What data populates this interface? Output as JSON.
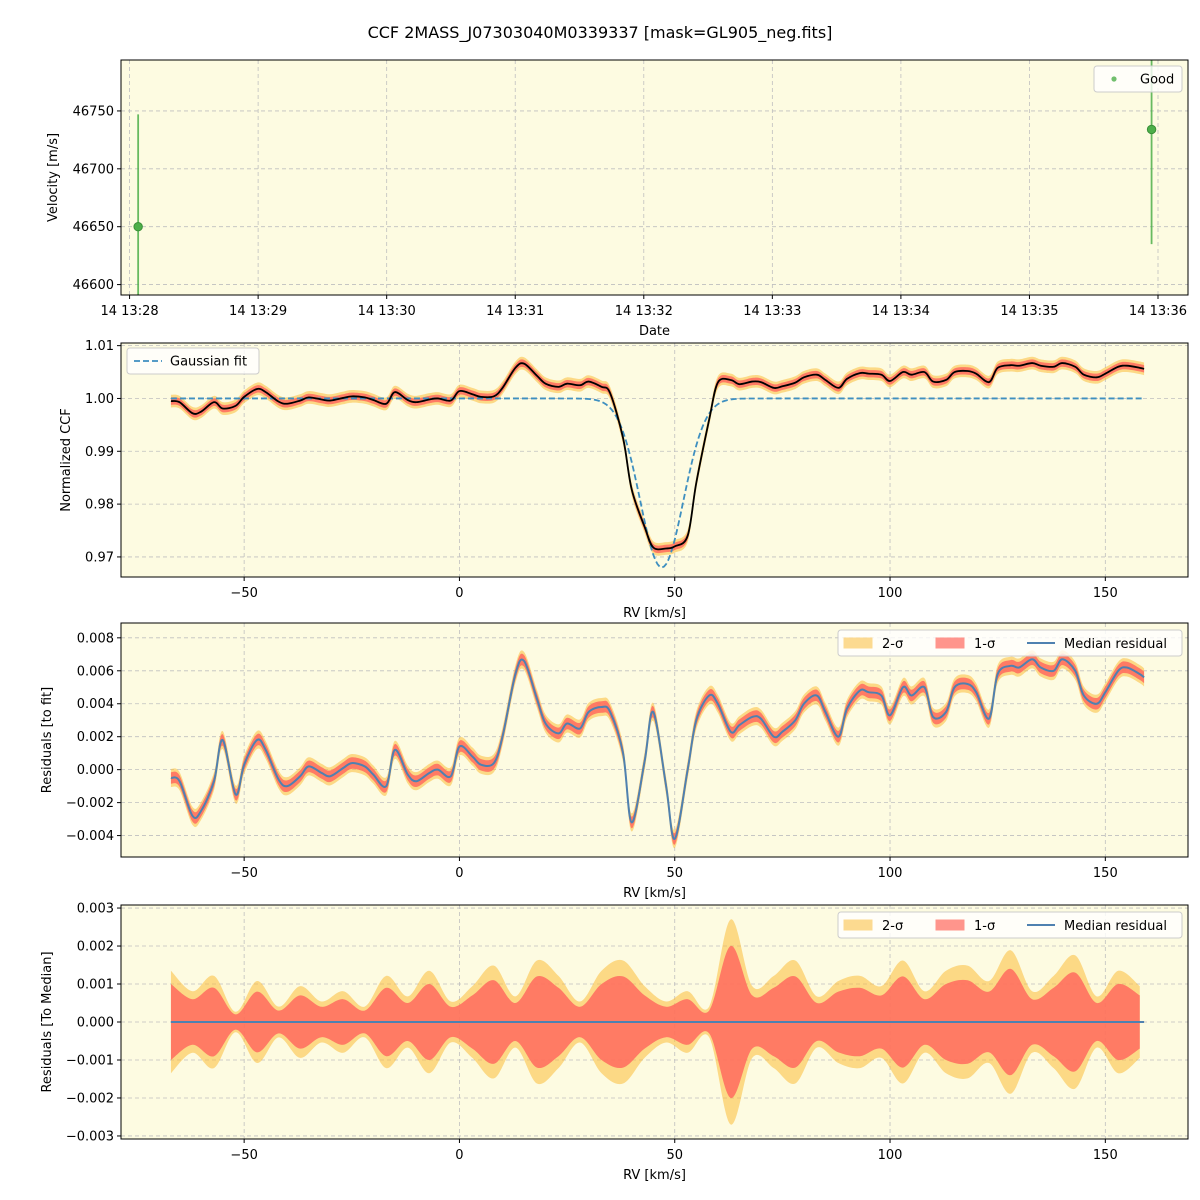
{
  "figure": {
    "suptitle": "CCF 2MASS_J07303040M0339337 [mask=GL905_neg.fits]",
    "facecolor": "#fdfbe1",
    "colors": {
      "good": "#4daf4a",
      "gauss": "#3e8fc0",
      "median": "#4f81b0",
      "ccf": "#000000",
      "band1": "#ff6a5e",
      "band2": "#fbbd3b",
      "grid": "#bfbfbf"
    }
  },
  "chart_data": [
    {
      "type": "scatter",
      "id": "timeseries",
      "title": "",
      "xlabel": "Date",
      "ylabel": "Velocity [m/s]",
      "xlim": [
        "14 13:27:56",
        "14 13:36:14"
      ],
      "ylim": [
        46591,
        46794
      ],
      "x_ticks": [
        "14 13:28",
        "14 13:29",
        "14 13:30",
        "14 13:31",
        "14 13:32",
        "14 13:33",
        "14 13:34",
        "14 13:35",
        "14 13:36"
      ],
      "y_ticks": [
        46600,
        46650,
        46700,
        46750
      ],
      "grid": true,
      "legend": {
        "position": "top-right",
        "entries": [
          "Good"
        ]
      },
      "series": [
        {
          "name": "Good",
          "points": [
            {
              "x": "14 13:28:04",
              "y": 46650,
              "yerr": 97
            },
            {
              "x": "14 13:35:57",
              "y": 46734,
              "yerr": 99
            }
          ]
        }
      ]
    },
    {
      "type": "line",
      "id": "ccf",
      "title": "",
      "xlabel": "RV [km/s]",
      "ylabel": "Normalized CCF",
      "xlim": [
        -78.6,
        169.2
      ],
      "ylim": [
        0.9662,
        1.0105
      ],
      "x_ticks": [
        -50,
        0,
        50,
        100,
        150
      ],
      "y_ticks": [
        0.97,
        0.98,
        0.99,
        1.0,
        1.01
      ],
      "grid": true,
      "legend": {
        "position": "top-left",
        "entries": [
          "Gaussian fit"
        ]
      },
      "gaussian_fit": {
        "center": 47,
        "depth": 0.032,
        "sigma": 5.0,
        "continuum": 1.0,
        "x_range": [
          -67,
          159
        ]
      },
      "series_points": {
        "x": [
          -67,
          -65,
          -62,
          -60,
          -57,
          -55,
          -52,
          -50,
          -47,
          -45,
          -42,
          -40,
          -37,
          -35,
          -32,
          -30,
          -27,
          -25,
          -22,
          -20,
          -17,
          -15,
          -12,
          -10,
          -7,
          -5,
          -2,
          0,
          3,
          5,
          8,
          10,
          13,
          15,
          18,
          20,
          23,
          25,
          28,
          30,
          33,
          35,
          38,
          40,
          43,
          45,
          48,
          50,
          53,
          55,
          58,
          60,
          63,
          65,
          68,
          70,
          73,
          75,
          78,
          80,
          83,
          85,
          88,
          90,
          93,
          95,
          98,
          100,
          103,
          105,
          108,
          110,
          113,
          115,
          118,
          120,
          123,
          125,
          128,
          130,
          133,
          135,
          138,
          140,
          143,
          145,
          148,
          150,
          153,
          155,
          158,
          159
        ],
        "y": [
          0.9995,
          0.9993,
          0.9972,
          0.9975,
          0.9993,
          0.9981,
          0.9986,
          1.0003,
          1.0018,
          1.0012,
          0.9994,
          0.999,
          0.9996,
          1.0002,
          0.9998,
          0.9996,
          1.0001,
          1.0004,
          1.0002,
          0.9997,
          0.999,
          1.0012,
          0.9997,
          0.9993,
          0.9998,
          1.0,
          0.9996,
          1.0014,
          1.0008,
          1.0003,
          1.0004,
          1.002,
          1.0058,
          1.0066,
          1.0043,
          1.0028,
          1.0022,
          1.0028,
          1.0025,
          1.0032,
          1.0022,
          1.001,
          0.9925,
          0.9828,
          0.9757,
          0.9718,
          0.9716,
          0.972,
          0.974,
          0.984,
          0.996,
          1.003,
          1.0035,
          1.0027,
          1.0032,
          1.0031,
          1.002,
          1.0023,
          1.003,
          1.004,
          1.0045,
          1.0035,
          1.002,
          1.0037,
          1.0048,
          1.0047,
          1.0045,
          1.0033,
          1.005,
          1.0045,
          1.005,
          1.0032,
          1.0035,
          1.005,
          1.0052,
          1.0047,
          1.0031,
          1.0058,
          1.0063,
          1.0062,
          1.0067,
          1.0062,
          1.006,
          1.0067,
          1.006,
          1.0045,
          1.004,
          1.0047,
          1.006,
          1.0062,
          1.0058,
          1.0056
        ]
      }
    },
    {
      "type": "area",
      "id": "residuals_fit",
      "title": "",
      "xlabel": "RV [km/s]",
      "ylabel": "Residuals [to fit]",
      "xlim": [
        -78.6,
        169.2
      ],
      "ylim": [
        -0.0053,
        0.0089
      ],
      "x_ticks": [
        -50,
        0,
        50,
        100,
        150
      ],
      "y_ticks": [
        -0.004,
        -0.002,
        0.0,
        0.002,
        0.004,
        0.006,
        0.008
      ],
      "y_tick_labels": [
        "−0.004",
        "−0.002",
        "0.000",
        "0.002",
        "0.004",
        "0.006",
        "0.008"
      ],
      "grid": true,
      "legend": {
        "position": "top-right",
        "entries": [
          "2-σ",
          "1-σ",
          "Median residual"
        ]
      },
      "series": [
        {
          "name": "Median residual",
          "x": [
            -67,
            -65,
            -62,
            -60,
            -57,
            -55,
            -52,
            -50,
            -47,
            -45,
            -42,
            -40,
            -37,
            -35,
            -32,
            -30,
            -27,
            -25,
            -22,
            -20,
            -17,
            -15,
            -12,
            -10,
            -7,
            -5,
            -2,
            0,
            3,
            5,
            8,
            10,
            13,
            15,
            18,
            20,
            23,
            25,
            28,
            30,
            33,
            35,
            38,
            40,
            43,
            45,
            48,
            50,
            53,
            55,
            58,
            60,
            63,
            65,
            68,
            70,
            73,
            75,
            78,
            80,
            83,
            85,
            88,
            90,
            93,
            95,
            98,
            100,
            103,
            105,
            108,
            110,
            113,
            115,
            118,
            120,
            123,
            125,
            128,
            130,
            133,
            135,
            138,
            140,
            143,
            145,
            148,
            150,
            153,
            155,
            158,
            159
          ],
          "y": [
            -0.0005,
            -0.0007,
            -0.0028,
            -0.0025,
            -0.0007,
            0.0018,
            -0.0015,
            0.0003,
            0.0018,
            0.0012,
            -0.0006,
            -0.001,
            -0.0004,
            0.0002,
            -0.0002,
            -0.0004,
            0.0001,
            0.0004,
            0.0002,
            -0.0003,
            -0.001,
            0.0012,
            -0.0003,
            -0.0007,
            -0.0002,
            0.0,
            -0.0004,
            0.0014,
            0.0008,
            0.0003,
            0.0004,
            0.002,
            0.0058,
            0.0066,
            0.0043,
            0.0028,
            0.0022,
            0.0028,
            0.0025,
            0.0035,
            0.0038,
            0.0035,
            0.001,
            -0.0032,
            0.0005,
            0.0035,
            -0.001,
            -0.0042,
            0.0,
            0.003,
            0.0045,
            0.004,
            0.0023,
            0.0027,
            0.0032,
            0.0031,
            0.002,
            0.0023,
            0.003,
            0.004,
            0.0045,
            0.0035,
            0.002,
            0.0037,
            0.0048,
            0.0047,
            0.0045,
            0.0033,
            0.005,
            0.0045,
            0.005,
            0.0032,
            0.0035,
            0.005,
            0.0052,
            0.0047,
            0.0031,
            0.0058,
            0.0063,
            0.0062,
            0.0067,
            0.0062,
            0.006,
            0.0067,
            0.006,
            0.0045,
            0.004,
            0.0047,
            0.006,
            0.0062,
            0.0058,
            0.0056
          ]
        }
      ]
    },
    {
      "type": "area",
      "id": "residuals_median",
      "title": "",
      "xlabel": "RV [km/s]",
      "ylabel": "Residuals [To Median]",
      "xlim": [
        -78.6,
        169.2
      ],
      "ylim": [
        -0.00308,
        0.00308
      ],
      "x_ticks": [
        -50,
        0,
        50,
        100,
        150
      ],
      "y_ticks": [
        -0.003,
        -0.002,
        -0.001,
        0.0,
        0.001,
        0.002,
        0.003
      ],
      "y_tick_labels": [
        "−0.003",
        "−0.002",
        "−0.001",
        "0.000",
        "0.001",
        "0.002",
        "0.003"
      ],
      "grid": true,
      "legend": {
        "position": "top-right",
        "entries": [
          "2-σ",
          "1-σ",
          "Median residual"
        ]
      },
      "series": [
        {
          "name": "Median residual",
          "x": [
            -67,
            159
          ],
          "y": [
            0.0,
            0.0
          ]
        }
      ],
      "band_envelope_1sigma": {
        "x": [
          -67,
          -62,
          -57,
          -52,
          -47,
          -42,
          -37,
          -32,
          -27,
          -22,
          -17,
          -12,
          -7,
          -2,
          3,
          8,
          13,
          18,
          23,
          28,
          33,
          38,
          43,
          48,
          53,
          58,
          63,
          68,
          73,
          78,
          83,
          88,
          93,
          98,
          103,
          108,
          113,
          118,
          123,
          128,
          133,
          138,
          143,
          148,
          153,
          158
        ],
        "half_width": [
          0.001,
          0.0006,
          0.0009,
          0.0002,
          0.0008,
          0.0003,
          0.0007,
          0.0004,
          0.0006,
          0.0003,
          0.0009,
          0.0005,
          0.001,
          0.0004,
          0.0007,
          0.0011,
          0.0005,
          0.0012,
          0.0009,
          0.0004,
          0.001,
          0.0012,
          0.0007,
          0.0004,
          0.0006,
          0.0003,
          0.002,
          0.0007,
          0.0009,
          0.0012,
          0.0005,
          0.0008,
          0.0009,
          0.0007,
          0.0012,
          0.0006,
          0.001,
          0.0011,
          0.0008,
          0.0014,
          0.0006,
          0.0009,
          0.0013,
          0.0005,
          0.001,
          0.0007
        ]
      }
    }
  ]
}
